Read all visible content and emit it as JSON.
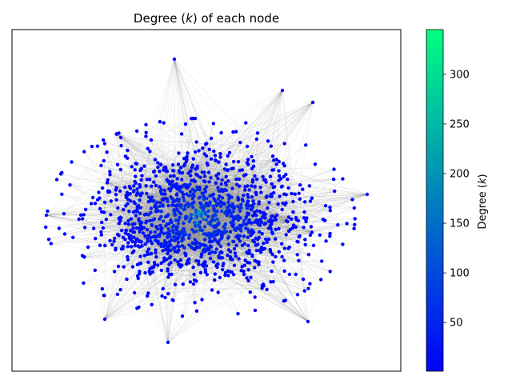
{
  "chart_data": {
    "type": "scatter",
    "title": "Degree (k) of each node",
    "title_parts": {
      "before": "Degree (",
      "var": "k",
      "after": ") of each node"
    },
    "xlabel": "",
    "ylabel": "",
    "axes_ticks": "hidden",
    "grid": false,
    "colorbar": {
      "label": "Degree (k)",
      "label_parts": {
        "before": "Degree (",
        "var": "k",
        "after": ")"
      },
      "range": [
        1,
        345
      ],
      "ticks": [
        50,
        100,
        150,
        200,
        250,
        300
      ],
      "colors": [
        "#0000ff",
        "#00ff80"
      ]
    },
    "node_count_estimate": 1300,
    "node_degree_typical": [
      2,
      150
    ],
    "hub_degree_max": 220,
    "edge_color": "#808080",
    "layout": "force-directed network, dense core and sparse periphery"
  }
}
